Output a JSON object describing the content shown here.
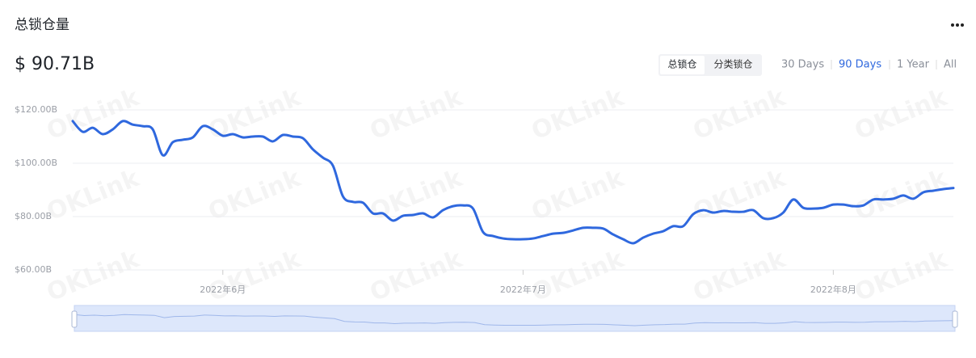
{
  "header": {
    "title": "总锁仓量",
    "value": "$ 90.71B"
  },
  "view_tabs": [
    "总锁仓",
    "分类锁仓"
  ],
  "active_tab": 0,
  "ranges": [
    "30 Days",
    "90 Days",
    "1 Year",
    "All"
  ],
  "active_range": 1,
  "watermark": "OKLink",
  "chart_data": {
    "type": "line",
    "color": "#2f68de",
    "grid": true,
    "categories": [
      null,
      null,
      null,
      null,
      null,
      null,
      null,
      null,
      null,
      null,
      null,
      null,
      null,
      null,
      null,
      "2022年6月",
      null,
      null,
      null,
      null,
      null,
      null,
      null,
      null,
      null,
      null,
      null,
      null,
      null,
      null,
      null,
      null,
      null,
      null,
      null,
      null,
      null,
      null,
      null,
      null,
      null,
      null,
      null,
      null,
      null,
      "2022年7月",
      null,
      null,
      null,
      null,
      null,
      null,
      null,
      null,
      null,
      null,
      null,
      null,
      null,
      null,
      null,
      null,
      null,
      null,
      null,
      null,
      null,
      null,
      null,
      null,
      null,
      null,
      null,
      null,
      null,
      null,
      "2022年8月",
      null,
      null,
      null,
      null,
      null,
      null,
      null,
      null,
      null,
      null,
      null,
      null
    ],
    "values": [
      115.8,
      111.8,
      113.3,
      110.9,
      112.7,
      115.8,
      114.5,
      113.9,
      112.7,
      103,
      107.9,
      108.8,
      109.7,
      113.9,
      112.7,
      110.3,
      110.9,
      109.7,
      110,
      110,
      108.2,
      110.6,
      110,
      109.4,
      105.2,
      102.1,
      99.1,
      87.6,
      85.5,
      85.2,
      81.2,
      81.2,
      78.5,
      80.3,
      80.6,
      81.2,
      79.7,
      82.4,
      83.9,
      84.2,
      83,
      74.2,
      72.7,
      71.8,
      71.5,
      71.5,
      71.8,
      72.7,
      73.6,
      73.9,
      74.8,
      75.8,
      75.8,
      75.5,
      73.3,
      71.5,
      70,
      72.1,
      73.6,
      74.5,
      76.4,
      76.4,
      80.9,
      82.4,
      81.5,
      82.1,
      81.8,
      81.8,
      82.4,
      79.4,
      79.4,
      81.5,
      86.4,
      83.3,
      83,
      83.3,
      84.5,
      84.5,
      83.9,
      84.2,
      86.4,
      86.4,
      86.7,
      87.9,
      86.7,
      89.1,
      89.7,
      90.3,
      90.71
    ],
    "ylim": [
      60,
      120
    ],
    "yticks": [
      {
        "value": 60,
        "label": "$60.00B"
      },
      {
        "value": 80,
        "label": "$80.00B"
      },
      {
        "value": 100,
        "label": "$100.00B"
      },
      {
        "value": 120,
        "label": "$120.00B"
      }
    ]
  }
}
